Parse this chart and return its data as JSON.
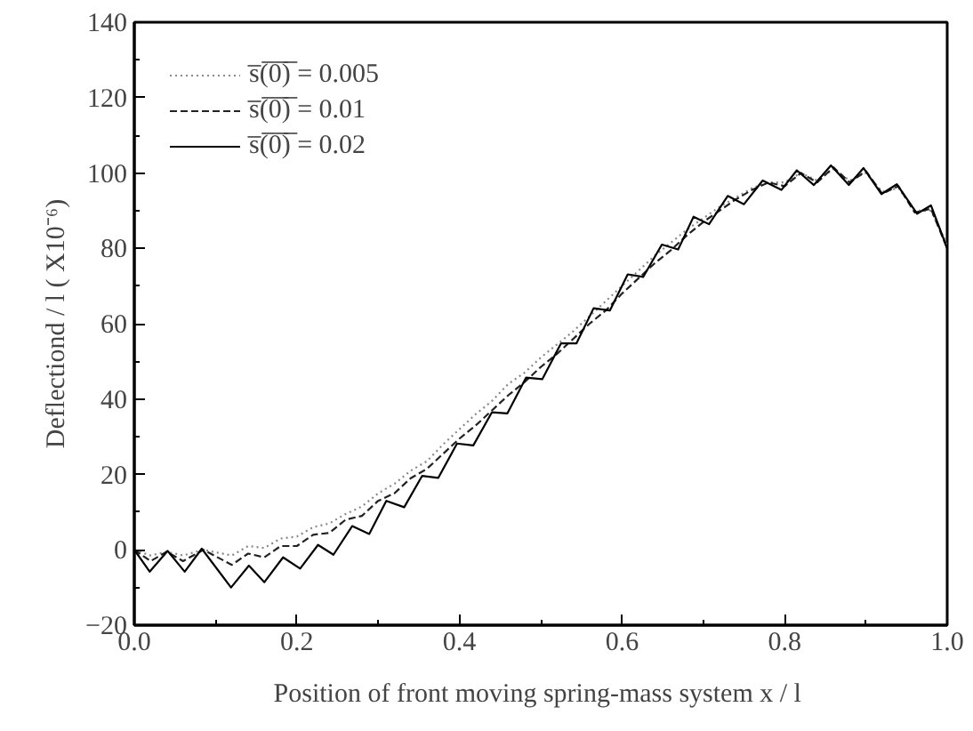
{
  "chart_data": {
    "type": "line",
    "xlabel": "Position of front moving spring-mass system  x / l",
    "ylabel": "Deflectiond / l ( X10⁻⁶)",
    "xlim": [
      0,
      1
    ],
    "ylim": [
      -20,
      140
    ],
    "xticks": [
      {
        "value": 0,
        "label": "0.0"
      },
      0.2,
      0.4,
      0.6,
      0.8,
      {
        "value": 1,
        "label": "1.0"
      }
    ],
    "yticks": [
      -20,
      0,
      20,
      40,
      60,
      80,
      100,
      120,
      140
    ],
    "grid": false,
    "legend": "top left",
    "marker": "none",
    "series": [
      {
        "name": "s̅(̅0̅)̅ = 0.005",
        "color": "#888888",
        "line_style": "dotted",
        "x": [
          0,
          0.02,
          0.04,
          0.06,
          0.085,
          0.12,
          0.14,
          0.16,
          0.18,
          0.2,
          0.22,
          0.24,
          0.26,
          0.28,
          0.3,
          0.32,
          0.34,
          0.36,
          0.38,
          0.4,
          0.42,
          0.44,
          0.46,
          0.48,
          0.5,
          0.52,
          0.54,
          0.56,
          0.58,
          0.6,
          0.62,
          0.64,
          0.66,
          0.68,
          0.7,
          0.72,
          0.74,
          0.76,
          0.78,
          0.8,
          0.82,
          0.84,
          0.86,
          0.88,
          0.9,
          0.92,
          0.94,
          0.96,
          0.98,
          1.0
        ],
        "values": [
          0,
          -1.5,
          -0.5,
          -1.5,
          0,
          -1.5,
          1,
          0.5,
          3,
          3.5,
          6,
          7,
          9.5,
          11.5,
          15,
          17.5,
          21,
          23.5,
          28,
          32,
          36,
          39.5,
          44,
          47,
          51,
          54.5,
          58,
          62,
          66,
          70,
          74,
          78,
          81.5,
          85,
          88,
          91,
          93.5,
          96,
          97.5,
          97.5,
          100,
          98,
          101,
          98,
          100,
          95,
          96,
          90,
          90,
          81
        ]
      },
      {
        "name": "s̅(̅0̅)̅ = 0.01",
        "color": "#222222",
        "line_style": "dashed",
        "x": [
          0,
          0.02,
          0.04,
          0.06,
          0.085,
          0.12,
          0.14,
          0.16,
          0.18,
          0.2,
          0.22,
          0.24,
          0.26,
          0.28,
          0.3,
          0.32,
          0.34,
          0.36,
          0.38,
          0.4,
          0.42,
          0.44,
          0.46,
          0.48,
          0.5,
          0.52,
          0.54,
          0.56,
          0.58,
          0.6,
          0.62,
          0.64,
          0.66,
          0.68,
          0.7,
          0.72,
          0.74,
          0.76,
          0.78,
          0.8,
          0.82,
          0.84,
          0.86,
          0.88,
          0.9,
          0.92,
          0.94,
          0.96,
          0.98,
          1.0
        ],
        "values": [
          0,
          -3,
          -0.5,
          -3,
          0,
          -4,
          -1,
          -2,
          1,
          1,
          4,
          4.5,
          8,
          9,
          13,
          15,
          19,
          21.5,
          25.5,
          29.5,
          33,
          37,
          41,
          44.5,
          48.5,
          52,
          56,
          60,
          63.5,
          68,
          72,
          76,
          79.5,
          83.5,
          87,
          90,
          93,
          95.5,
          97.5,
          96.5,
          100,
          97.5,
          101.5,
          97.5,
          100.5,
          94.5,
          96.5,
          89.5,
          90.5,
          80
        ]
      },
      {
        "name": "s̅(̅0̅)̅ = 0.02",
        "color": "#000000",
        "line_style": "solid",
        "x": [
          0,
          0.019,
          0.041,
          0.062,
          0.083,
          0.119,
          0.141,
          0.16,
          0.183,
          0.204,
          0.226,
          0.245,
          0.268,
          0.289,
          0.31,
          0.332,
          0.354,
          0.374,
          0.397,
          0.417,
          0.44,
          0.459,
          0.482,
          0.502,
          0.525,
          0.544,
          0.565,
          0.585,
          0.607,
          0.626,
          0.649,
          0.669,
          0.688,
          0.707,
          0.73,
          0.75,
          0.773,
          0.796,
          0.815,
          0.836,
          0.857,
          0.879,
          0.897,
          0.919,
          0.938,
          0.963,
          0.98,
          1.0
        ],
        "values": [
          0,
          -5.8,
          -0.3,
          -5.8,
          0.3,
          -10,
          -4.2,
          -8.6,
          -2,
          -5,
          1.3,
          -1.3,
          6.3,
          4.2,
          13,
          11.3,
          19.6,
          19.1,
          28.2,
          27.7,
          36.5,
          36.2,
          45.7,
          45.3,
          54.8,
          54.8,
          64.1,
          63.5,
          73.1,
          72.4,
          81,
          79.7,
          88.4,
          86.4,
          93.9,
          91.7,
          98,
          95.5,
          100.7,
          96.8,
          102,
          96.8,
          101.3,
          94.4,
          97,
          89.2,
          91.4,
          80
        ]
      }
    ]
  }
}
